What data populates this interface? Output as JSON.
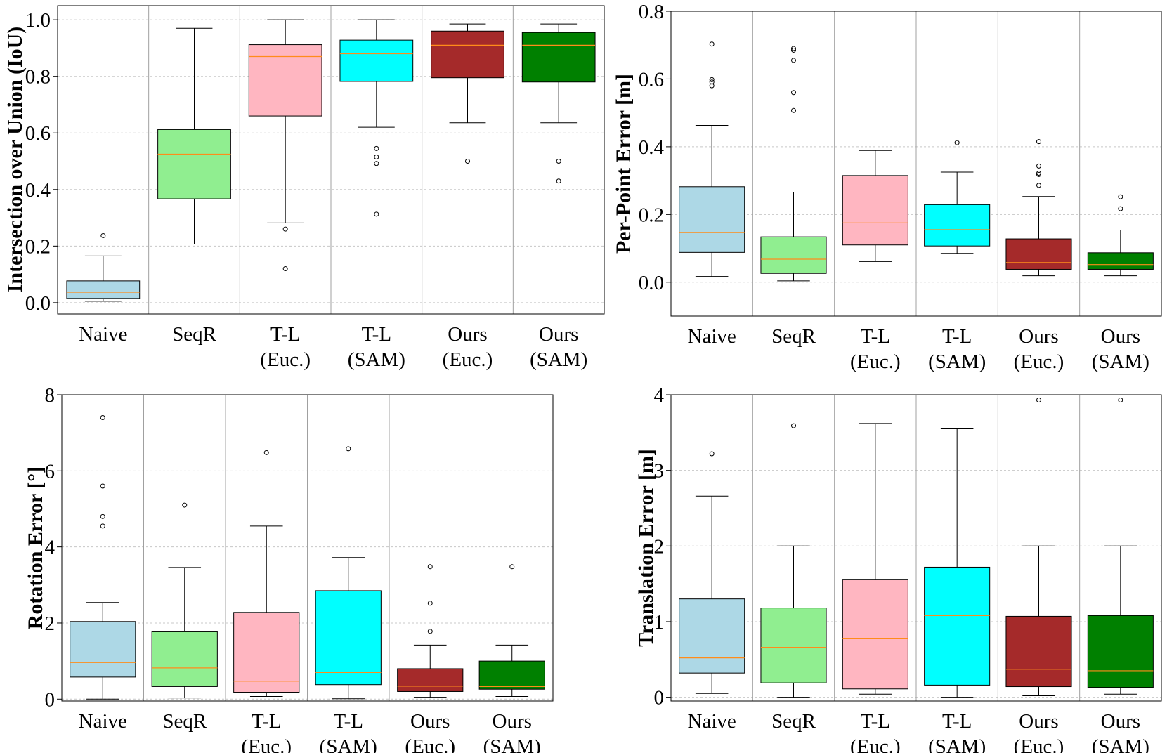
{
  "colors": {
    "Naive": "#add8e6",
    "SeqR": "#90ee90",
    "T-L (Euc.)": "#ffb6c1",
    "T-L (SAM)": "#00ffff",
    "Ours (Euc.)": "#a52a2a",
    "Ours (SAM)": "#008000",
    "median": "#ff8c1a"
  },
  "chart_data": [
    {
      "type": "box",
      "xlabel": "",
      "ylabel": "Intersection over Union (IoU)",
      "ylim": [
        -0.04,
        1.05
      ],
      "yticks": [
        "0.0",
        "0.2",
        "0.4",
        "0.6",
        "0.8",
        "1.0"
      ],
      "ytick_values": [
        0,
        0.2,
        0.4,
        0.6,
        0.8,
        1.0
      ],
      "grid": "horizontal",
      "categories": [
        {
          "line1": "Naive",
          "line2": "",
          "key": "Naive",
          "whislo": 0.005,
          "q1": 0.015,
          "med": 0.037,
          "q3": 0.077,
          "whishi": 0.165,
          "fliers": [
            0.237
          ]
        },
        {
          "line1": "SeqR",
          "line2": "",
          "key": "SeqR",
          "whislo": 0.207,
          "q1": 0.367,
          "med": 0.525,
          "q3": 0.612,
          "whishi": 0.97,
          "fliers": []
        },
        {
          "line1": "T-L",
          "line2": "(Euc.)",
          "key": "T-L (Euc.)",
          "whislo": 0.282,
          "q1": 0.66,
          "med": 0.87,
          "q3": 0.912,
          "whishi": 1.0,
          "fliers": [
            0.26,
            0.12
          ]
        },
        {
          "line1": "T-L",
          "line2": "(SAM)",
          "key": "T-L (SAM)",
          "whislo": 0.62,
          "q1": 0.782,
          "med": 0.88,
          "q3": 0.928,
          "whishi": 1.0,
          "fliers": [
            0.545,
            0.515,
            0.492,
            0.313
          ]
        },
        {
          "line1": "Ours",
          "line2": "(Euc.)",
          "key": "Ours (Euc.)",
          "whislo": 0.636,
          "q1": 0.795,
          "med": 0.91,
          "q3": 0.96,
          "whishi": 0.985,
          "fliers": [
            0.5
          ]
        },
        {
          "line1": "Ours",
          "line2": "(SAM)",
          "key": "Ours (SAM)",
          "whislo": 0.636,
          "q1": 0.78,
          "med": 0.91,
          "q3": 0.955,
          "whishi": 0.985,
          "fliers": [
            0.5,
            0.43
          ]
        }
      ]
    },
    {
      "type": "box",
      "xlabel": "",
      "ylabel": "Per-Point Error [m]",
      "ylim": [
        -0.1,
        0.8
      ],
      "yticks": [
        "0.0",
        "0.2",
        "0.4",
        "0.6",
        "0.8"
      ],
      "ytick_values": [
        0,
        0.2,
        0.4,
        0.6,
        0.8
      ],
      "grid": "horizontal",
      "categories": [
        {
          "line1": "Naive",
          "line2": "",
          "key": "Naive",
          "whislo": 0.017,
          "q1": 0.088,
          "med": 0.147,
          "q3": 0.282,
          "whishi": 0.463,
          "fliers": [
            0.703,
            0.598,
            0.591,
            0.58
          ]
        },
        {
          "line1": "SeqR",
          "line2": "",
          "key": "SeqR",
          "whislo": 0.004,
          "q1": 0.026,
          "med": 0.068,
          "q3": 0.134,
          "whishi": 0.266,
          "fliers": [
            0.69,
            0.685,
            0.655,
            0.56,
            0.507
          ]
        },
        {
          "line1": "T-L",
          "line2": "(Euc.)",
          "key": "T-L (Euc.)",
          "whislo": 0.061,
          "q1": 0.11,
          "med": 0.175,
          "q3": 0.315,
          "whishi": 0.389,
          "fliers": []
        },
        {
          "line1": "T-L",
          "line2": "(SAM)",
          "key": "T-L (SAM)",
          "whislo": 0.085,
          "q1": 0.107,
          "med": 0.155,
          "q3": 0.229,
          "whishi": 0.325,
          "fliers": [
            0.412
          ]
        },
        {
          "line1": "Ours",
          "line2": "(Euc.)",
          "key": "Ours (Euc.)",
          "whislo": 0.019,
          "q1": 0.038,
          "med": 0.058,
          "q3": 0.128,
          "whishi": 0.253,
          "fliers": [
            0.415,
            0.343,
            0.322,
            0.318,
            0.286
          ]
        },
        {
          "line1": "Ours",
          "line2": "(SAM)",
          "key": "Ours (SAM)",
          "whislo": 0.019,
          "q1": 0.038,
          "med": 0.052,
          "q3": 0.087,
          "whishi": 0.154,
          "fliers": [
            0.252,
            0.217
          ]
        }
      ]
    },
    {
      "type": "box",
      "xlabel": "",
      "ylabel": "Rotation Error [°]",
      "ylim": [
        -0.05,
        8
      ],
      "yticks": [
        "0",
        "2",
        "4",
        "6",
        "8"
      ],
      "ytick_values": [
        0,
        2,
        4,
        6,
        8
      ],
      "grid": "horizontal",
      "categories": [
        {
          "line1": "Naive",
          "line2": "",
          "key": "Naive",
          "whislo": 0.0,
          "q1": 0.58,
          "med": 0.96,
          "q3": 2.04,
          "whishi": 2.54,
          "fliers": [
            7.4,
            5.6,
            4.8,
            4.55
          ]
        },
        {
          "line1": "SeqR",
          "line2": "",
          "key": "SeqR",
          "whislo": 0.03,
          "q1": 0.33,
          "med": 0.82,
          "q3": 1.77,
          "whishi": 3.46,
          "fliers": [
            5.1
          ]
        },
        {
          "line1": "T-L",
          "line2": "(Euc.)",
          "key": "T-L (Euc.)",
          "whislo": 0.07,
          "q1": 0.18,
          "med": 0.47,
          "q3": 2.28,
          "whishi": 4.55,
          "fliers": [
            6.48
          ]
        },
        {
          "line1": "T-L",
          "line2": "(SAM)",
          "key": "T-L (SAM)",
          "whislo": 0.01,
          "q1": 0.38,
          "med": 0.7,
          "q3": 2.85,
          "whishi": 3.72,
          "fliers": [
            6.58
          ]
        },
        {
          "line1": "Ours",
          "line2": "(Euc.)",
          "key": "Ours (Euc.)",
          "whislo": 0.05,
          "q1": 0.2,
          "med": 0.34,
          "q3": 0.8,
          "whishi": 1.42,
          "fliers": [
            3.48,
            2.52,
            1.78
          ]
        },
        {
          "line1": "Ours",
          "line2": "(SAM)",
          "key": "Ours (SAM)",
          "whislo": 0.07,
          "q1": 0.26,
          "med": 0.33,
          "q3": 1.0,
          "whishi": 1.42,
          "fliers": [
            3.48
          ]
        }
      ]
    },
    {
      "type": "box",
      "xlabel": "",
      "ylabel": "Translation Error [m]",
      "ylim": [
        -0.05,
        4
      ],
      "yticks": [
        "0",
        "1",
        "2",
        "3",
        "4"
      ],
      "ytick_values": [
        0,
        1,
        2,
        3,
        4
      ],
      "grid": "horizontal",
      "categories": [
        {
          "line1": "Naive",
          "line2": "",
          "key": "Naive",
          "whislo": 0.05,
          "q1": 0.32,
          "med": 0.52,
          "q3": 1.3,
          "whishi": 2.66,
          "fliers": [
            3.22
          ]
        },
        {
          "line1": "SeqR",
          "line2": "",
          "key": "SeqR",
          "whislo": 0.0,
          "q1": 0.19,
          "med": 0.66,
          "q3": 1.18,
          "whishi": 2.0,
          "fliers": [
            3.59
          ]
        },
        {
          "line1": "T-L",
          "line2": "(Euc.)",
          "key": "T-L (Euc.)",
          "whislo": 0.04,
          "q1": 0.11,
          "med": 0.78,
          "q3": 1.56,
          "whishi": 3.62,
          "fliers": []
        },
        {
          "line1": "T-L",
          "line2": "(SAM)",
          "key": "T-L (SAM)",
          "whislo": 0.0,
          "q1": 0.16,
          "med": 1.08,
          "q3": 1.72,
          "whishi": 3.55,
          "fliers": []
        },
        {
          "line1": "Ours",
          "line2": "(Euc.)",
          "key": "Ours (Euc.)",
          "whislo": 0.02,
          "q1": 0.14,
          "med": 0.37,
          "q3": 1.07,
          "whishi": 2.0,
          "fliers": [
            3.93
          ]
        },
        {
          "line1": "Ours",
          "line2": "(SAM)",
          "key": "Ours (SAM)",
          "whislo": 0.04,
          "q1": 0.13,
          "med": 0.35,
          "q3": 1.08,
          "whishi": 2.0,
          "fliers": [
            3.93
          ]
        }
      ]
    }
  ]
}
